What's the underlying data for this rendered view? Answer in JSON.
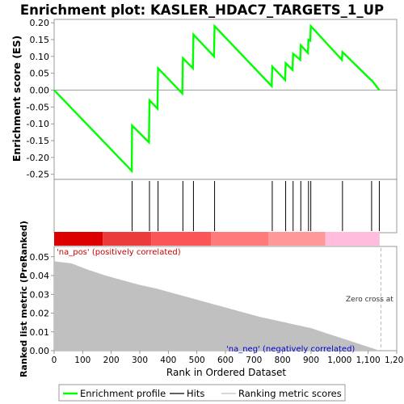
{
  "chart_data": {
    "type": "line",
    "title": "Enrichment plot: KASLER_HDAC7_TARGETS_1_UP",
    "xlabel": "Rank in Ordered Dataset",
    "xlim": [
      0,
      1200
    ],
    "xticks": [
      0,
      100,
      200,
      300,
      400,
      500,
      600,
      700,
      800,
      900,
      1000,
      1100,
      1200
    ],
    "xtick_labels": [
      "0",
      "100",
      "200",
      "300",
      "400",
      "500",
      "600",
      "700",
      "800",
      "900",
      "1,000",
      "1,100",
      "1,200"
    ],
    "panels": [
      {
        "id": "enrichment",
        "ylabel": "Enrichment score (ES)",
        "ylim": [
          -0.265,
          0.21
        ],
        "yticks": [
          -0.25,
          -0.2,
          -0.15,
          -0.1,
          -0.05,
          0.0,
          0.05,
          0.1,
          0.15,
          0.2
        ],
        "ytick_labels": [
          "-0.25",
          "-0.20",
          "-0.15",
          "-0.10",
          "-0.05",
          "0.00",
          "0.05",
          "0.10",
          "0.15",
          "0.20"
        ],
        "series": [
          {
            "name": "Enrichment profile",
            "color": "#00ff00",
            "x": [
              0,
              272,
              273,
              332,
              334,
              362,
              364,
              449,
              451,
              486,
              488,
              560,
              562,
              762,
              764,
              809,
              811,
              835,
              837,
              862,
              864,
              889,
              891,
              897,
              899,
              1008,
              1010,
              1110,
              1112,
              1139
            ],
            "y": [
              0.0,
              -0.24,
              -0.105,
              -0.155,
              -0.03,
              -0.055,
              0.065,
              -0.01,
              0.095,
              0.065,
              0.165,
              0.1,
              0.19,
              0.012,
              0.07,
              0.03,
              0.08,
              0.06,
              0.108,
              0.09,
              0.133,
              0.11,
              0.15,
              0.147,
              0.19,
              0.09,
              0.113,
              0.03,
              0.03,
              0.0
            ]
          }
        ]
      },
      {
        "id": "hits",
        "series": [
          {
            "name": "Hits",
            "color": "#000000",
            "x": [
              273,
              334,
              364,
              451,
              488,
              562,
              764,
              811,
              837,
              864,
              891,
              899,
              1010,
              1112,
              1139
            ]
          }
        ],
        "color_bar": {
          "x_ranges": [
            [
              0,
              170
            ],
            [
              170,
              340
            ],
            [
              340,
              550
            ],
            [
              550,
              750
            ],
            [
              750,
              950
            ],
            [
              950,
              1140
            ]
          ],
          "colors": [
            "#dd0000",
            "#ec3b3b",
            "#fb5656",
            "#ff7a7a",
            "#ff9999",
            "#ffbcdd"
          ]
        }
      },
      {
        "id": "ranked",
        "ylabel": "Ranked list metric (PreRanked)",
        "ylim": [
          0,
          0.0555
        ],
        "yticks": [
          0.0,
          0.01,
          0.02,
          0.03,
          0.04,
          0.05
        ],
        "ytick_labels": [
          "0.00",
          "0.01",
          "0.02",
          "0.03",
          "0.04",
          "0.05"
        ],
        "series": [
          {
            "name": "Ranking metric scores",
            "color": "#c0c0c0",
            "x": [
              0,
              5,
              60,
              120,
              180,
              240,
              300,
              360,
              420,
              480,
              540,
              600,
              660,
              720,
              780,
              840,
              900,
              960,
              1020,
              1080,
              1120,
              1140
            ],
            "y": [
              0.048,
              0.0475,
              0.0465,
              0.043,
              0.04,
              0.0375,
              0.035,
              0.033,
              0.0305,
              0.028,
              0.0255,
              0.023,
              0.0205,
              0.018,
              0.016,
              0.014,
              0.012,
              0.009,
              0.006,
              0.003,
              0.001,
              0.0
            ]
          }
        ],
        "annotations": {
          "pos_label": "'na_pos' (positively correlated)",
          "neg_label": "'na_neg' (negatively correlated)",
          "zero_cross": "Zero cross at",
          "zero_cross_x": 1145
        }
      }
    ],
    "legend": {
      "placement": "bottom",
      "entries": [
        {
          "label": "Enrichment profile",
          "color": "#00ff00"
        },
        {
          "label": "Hits",
          "color": "#000000"
        },
        {
          "label": "Ranking metric scores",
          "color": "#c0c0c0"
        }
      ]
    }
  }
}
